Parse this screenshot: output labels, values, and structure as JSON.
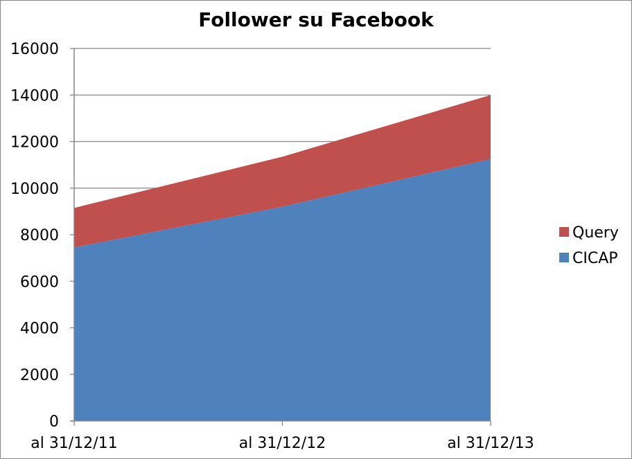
{
  "chart_data": {
    "type": "area",
    "stacked": true,
    "title": "Follower su Facebook",
    "xlabel": "",
    "ylabel": "",
    "categories": [
      "al 31/12/11",
      "al 31/12/12",
      "al 31/12/13"
    ],
    "ylim": [
      0,
      16000
    ],
    "yticks": [
      0,
      2000,
      4000,
      6000,
      8000,
      10000,
      12000,
      14000,
      16000
    ],
    "grid": true,
    "legend_position": "right",
    "series": [
      {
        "name": "CICAP",
        "values": [
          7450,
          9200,
          11250
        ],
        "color": "#4F81BD"
      },
      {
        "name": "Query",
        "values": [
          1700,
          2150,
          2750
        ],
        "color": "#C0504D"
      }
    ],
    "legend_order": [
      "Query",
      "CICAP"
    ]
  }
}
